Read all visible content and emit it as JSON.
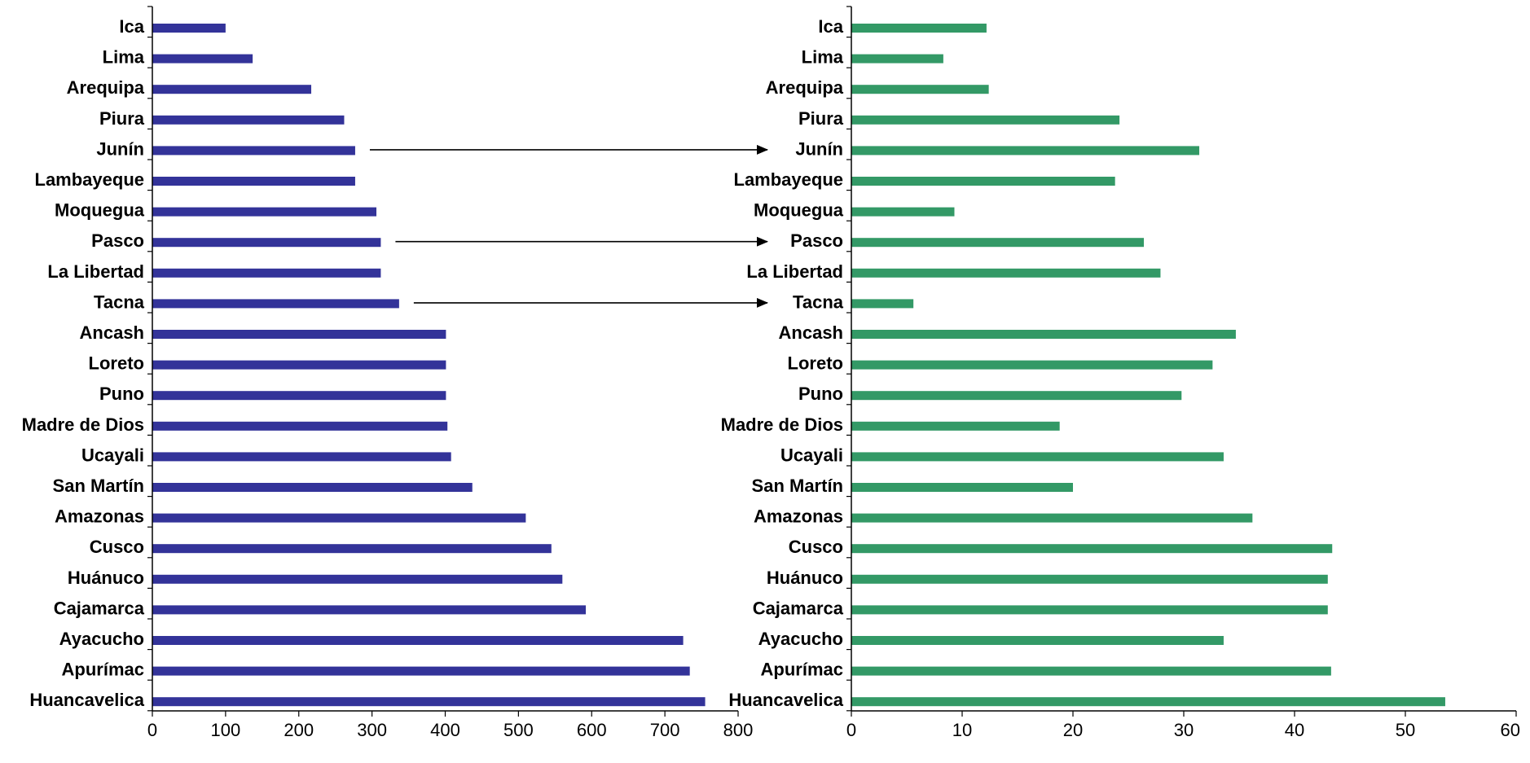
{
  "chart_data": [
    {
      "type": "bar",
      "orientation": "horizontal",
      "categories": [
        "Ica",
        "Lima",
        "Arequipa",
        "Piura",
        "Junín",
        "Lambayeque",
        "Moquegua",
        "Pasco",
        "La Libertad",
        "Tacna",
        "Ancash",
        "Loreto",
        "Puno",
        "Madre de Dios",
        "Ucayali",
        "San Martín",
        "Amazonas",
        "Cusco",
        "Huánuco",
        "Cajamarca",
        "Ayacucho",
        "Apurímac",
        "Huancavelica"
      ],
      "values": [
        100,
        137,
        217,
        262,
        277,
        277,
        306,
        312,
        312,
        337,
        401,
        401,
        401,
        403,
        408,
        437,
        510,
        545,
        560,
        592,
        725,
        734,
        755
      ],
      "xlim": [
        0,
        800
      ],
      "xticks": [
        "0",
        "100",
        "200",
        "300",
        "400",
        "500",
        "600",
        "700",
        "800"
      ],
      "color": "#333399",
      "grid": false
    },
    {
      "type": "bar",
      "orientation": "horizontal",
      "categories": [
        "Ica",
        "Lima",
        "Arequipa",
        "Piura",
        "Junín",
        "Lambayeque",
        "Moquegua",
        "Pasco",
        "La Libertad",
        "Tacna",
        "Ancash",
        "Loreto",
        "Puno",
        "Madre de Dios",
        "Ucayali",
        "San Martín",
        "Amazonas",
        "Cusco",
        "Huánuco",
        "Cajamarca",
        "Ayacucho",
        "Apurímac",
        "Huancavelica"
      ],
      "values": [
        12.2,
        8.3,
        12.4,
        24.2,
        31.4,
        23.8,
        9.3,
        26.4,
        27.9,
        5.6,
        34.7,
        32.6,
        29.8,
        18.8,
        33.6,
        20.0,
        36.2,
        43.4,
        43.0,
        43.0,
        33.6,
        43.3,
        53.6
      ],
      "xlim": [
        0,
        60
      ],
      "xticks": [
        "0",
        "10",
        "20",
        "30",
        "40",
        "50",
        "60"
      ],
      "color": "#339966",
      "grid": false
    }
  ],
  "annotations": {
    "arrows": [
      {
        "category": "Junín",
        "from": "left-chart",
        "to": "right-chart"
      },
      {
        "category": "Pasco",
        "from": "left-chart",
        "to": "right-chart"
      },
      {
        "category": "Tacna",
        "from": "left-chart",
        "to": "right-chart"
      }
    ]
  }
}
